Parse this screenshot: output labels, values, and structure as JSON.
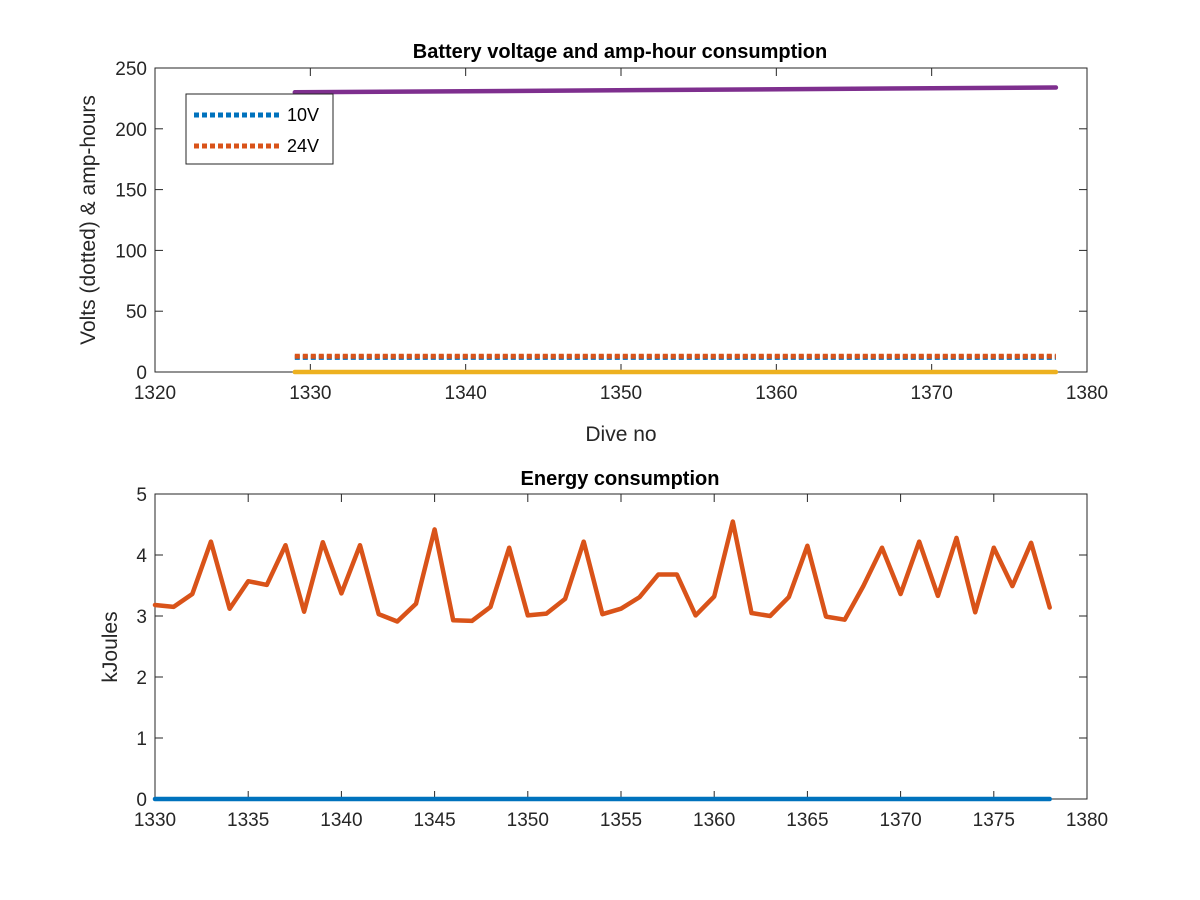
{
  "chart_data": [
    {
      "type": "line",
      "title": "Battery voltage and amp-hour consumption",
      "xlabel": "Dive no",
      "ylabel": "Volts (dotted) & amp-hours",
      "xlim": [
        1320,
        1380
      ],
      "ylim": [
        0,
        250
      ],
      "xticks": [
        1320,
        1330,
        1340,
        1350,
        1360,
        1370,
        1380
      ],
      "yticks": [
        0,
        50,
        100,
        150,
        200,
        250
      ],
      "grid": false,
      "legend_position": "top-left",
      "series": [
        {
          "name": "10V",
          "style": "dotted",
          "color": "#0072BD",
          "x": [
            1329,
            1378
          ],
          "values": [
            12,
            12
          ]
        },
        {
          "name": "24V",
          "style": "dotted",
          "color": "#D95319",
          "x": [
            1329,
            1378
          ],
          "values": [
            13,
            13
          ]
        },
        {
          "style": "solid",
          "color": "#EDB120",
          "x": [
            1329,
            1378
          ],
          "values": [
            0,
            0
          ]
        },
        {
          "style": "solid",
          "color": "#7E2F8E",
          "x": [
            1329,
            1378
          ],
          "values": [
            230,
            234
          ]
        }
      ]
    },
    {
      "type": "line",
      "title": "Energy consumption",
      "xlabel": "",
      "ylabel": "kJoules",
      "xlim": [
        1330,
        1380
      ],
      "ylim": [
        0,
        5
      ],
      "xticks": [
        1330,
        1335,
        1340,
        1345,
        1350,
        1355,
        1360,
        1365,
        1370,
        1375,
        1380
      ],
      "yticks": [
        0,
        1,
        2,
        3,
        4,
        5
      ],
      "grid": false,
      "series": [
        {
          "style": "solid",
          "color": "#0072BD",
          "x": [
            1330,
            1378
          ],
          "values": [
            0,
            0
          ]
        },
        {
          "style": "solid",
          "color": "#D95319",
          "x": [
            1330,
            1331,
            1332,
            1333,
            1334,
            1335,
            1336,
            1337,
            1338,
            1339,
            1340,
            1341,
            1342,
            1343,
            1344,
            1345,
            1346,
            1347,
            1348,
            1349,
            1350,
            1351,
            1352,
            1353,
            1354,
            1355,
            1356,
            1357,
            1358,
            1359,
            1360,
            1361,
            1362,
            1363,
            1364,
            1365,
            1366,
            1367,
            1368,
            1369,
            1370,
            1371,
            1372,
            1373,
            1374,
            1375,
            1376,
            1377,
            1378
          ],
          "values": [
            3.18,
            3.15,
            3.36,
            4.22,
            3.12,
            3.57,
            3.51,
            4.16,
            3.07,
            4.21,
            3.37,
            4.16,
            3.03,
            2.91,
            3.2,
            4.42,
            2.93,
            2.92,
            3.15,
            4.12,
            3.01,
            3.04,
            3.28,
            4.22,
            3.03,
            3.12,
            3.31,
            3.68,
            3.68,
            3.01,
            3.32,
            4.55,
            3.05,
            3.0,
            3.31,
            4.15,
            2.99,
            2.94,
            3.49,
            4.12,
            3.36,
            4.22,
            3.33,
            4.28,
            3.06,
            4.12,
            3.49,
            4.2,
            3.14
          ]
        }
      ]
    }
  ]
}
